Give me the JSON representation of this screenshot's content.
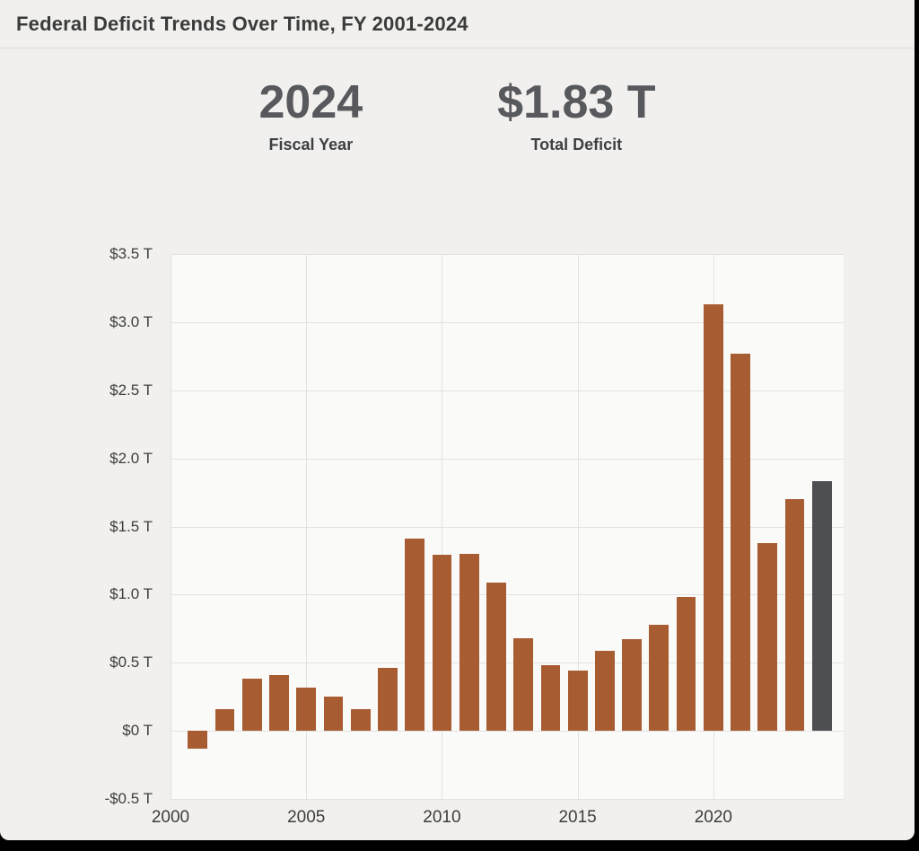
{
  "page": {
    "title": "Federal Deficit Trends Over Time, FY 2001-2024"
  },
  "stats": {
    "fiscal_year_value": "2024",
    "fiscal_year_label": "Fiscal Year",
    "deficit_value": "$1.83 T",
    "deficit_label": "Total Deficit"
  },
  "chart_data": {
    "type": "bar",
    "title": "Federal Deficit Trends Over Time, FY 2001-2024",
    "xlabel": "",
    "ylabel": "",
    "x": [
      2001,
      2002,
      2003,
      2004,
      2005,
      2006,
      2007,
      2008,
      2009,
      2010,
      2011,
      2012,
      2013,
      2014,
      2015,
      2016,
      2017,
      2018,
      2019,
      2020,
      2021,
      2022,
      2023,
      2024
    ],
    "values": [
      -0.13,
      0.16,
      0.38,
      0.41,
      0.32,
      0.25,
      0.16,
      0.46,
      1.41,
      1.29,
      1.3,
      1.09,
      0.68,
      0.48,
      0.44,
      0.59,
      0.67,
      0.78,
      0.98,
      3.13,
      2.77,
      1.38,
      1.7,
      1.83
    ],
    "unit": "trillion USD",
    "ylim": [
      -0.5,
      3.5
    ],
    "xlim": [
      2000,
      2024.8
    ],
    "grid": true,
    "legend": "none",
    "yticks": [
      {
        "value": 3.5,
        "label": "$3.5 T"
      },
      {
        "value": 3.0,
        "label": "$3.0 T"
      },
      {
        "value": 2.5,
        "label": "$2.5 T"
      },
      {
        "value": 2.0,
        "label": "$2.0 T"
      },
      {
        "value": 1.5,
        "label": "$1.5 T"
      },
      {
        "value": 1.0,
        "label": "$1.0 T"
      },
      {
        "value": 0.5,
        "label": "$0.5 T"
      },
      {
        "value": 0,
        "label": "$0 T"
      },
      {
        "value": -0.5,
        "label": "-$0.5 T"
      }
    ],
    "xticks": [
      {
        "value": 2000,
        "label": "2000"
      },
      {
        "value": 2005,
        "label": "2005"
      },
      {
        "value": 2010,
        "label": "2010"
      },
      {
        "value": 2015,
        "label": "2015"
      },
      {
        "value": 2020,
        "label": "2020"
      }
    ],
    "bar_color": "#a85c32",
    "highlight_color": "#4e4f52",
    "highlight_index": 23,
    "bar_width_years": 0.72
  }
}
